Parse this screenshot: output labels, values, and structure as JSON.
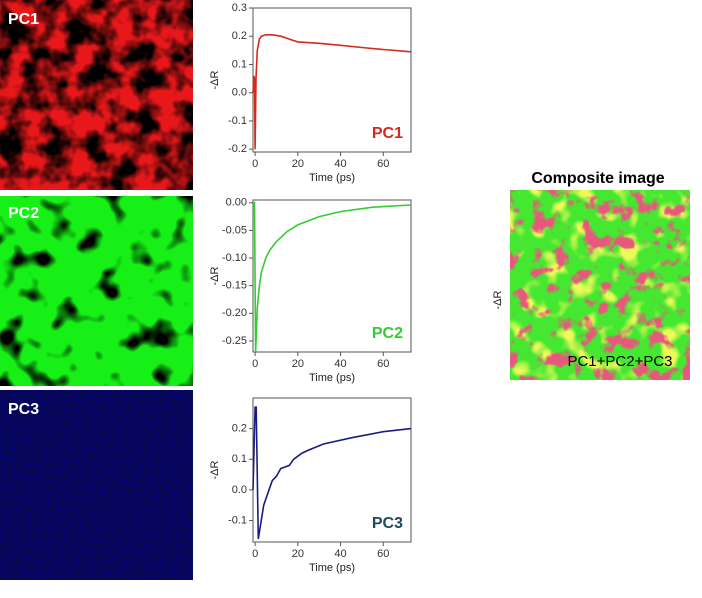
{
  "images": [
    {
      "label": "PC1"
    },
    {
      "label": "PC2"
    },
    {
      "label": "PC3"
    }
  ],
  "composite": {
    "title": "Composite image",
    "label": "PC1+PC2+PC3",
    "axis_label": "-ΔR"
  },
  "chart_data": [
    {
      "type": "line",
      "annotation": "PC1",
      "annotation_color": "#d42a1c",
      "xlabel": "Time (ps)",
      "ylabel": "-ΔR",
      "series": [
        {
          "name": "PC1",
          "color": "#d42a1c",
          "x": [
            -1,
            -0.6,
            -0.3,
            0,
            0.4,
            1,
            2,
            3,
            5,
            8,
            12,
            16,
            20,
            30,
            40,
            50,
            60,
            73
          ],
          "values": [
            0,
            0.06,
            0.05,
            -0.2,
            0.05,
            0.15,
            0.19,
            0.2,
            0.205,
            0.205,
            0.2,
            0.19,
            0.18,
            0.175,
            0.168,
            0.16,
            0.153,
            0.145
          ]
        }
      ],
      "xlim": [
        -1,
        73
      ],
      "ylim": [
        -0.21,
        0.3
      ],
      "xticks": [
        0,
        20,
        40,
        60
      ],
      "yticks": [
        0.3,
        0.2,
        0.1,
        {
          "value": 0,
          "label": "0.0"
        },
        -0.1,
        -0.2
      ]
    },
    {
      "type": "line",
      "annotation": "PC2",
      "annotation_color": "#33cc33",
      "xlabel": "Time (ps)",
      "ylabel": "-ΔR",
      "series": [
        {
          "name": "PC2",
          "color": "#33cc33",
          "x": [
            -1,
            -0.3,
            0.2,
            1,
            2,
            3,
            5,
            7,
            10,
            15,
            20,
            30,
            40,
            55,
            73
          ],
          "values": [
            0,
            0,
            -0.27,
            -0.19,
            -0.15,
            -0.125,
            -0.1,
            -0.085,
            -0.07,
            -0.052,
            -0.04,
            -0.025,
            -0.016,
            -0.008,
            -0.004
          ]
        }
      ],
      "xlim": [
        -1,
        73
      ],
      "ylim": [
        -0.27,
        0.005
      ],
      "xticks": [
        0,
        20,
        40,
        60
      ],
      "yticks": [
        {
          "value": 0,
          "label": "0.00"
        },
        -0.05,
        {
          "value": -0.1,
          "label": "-0.10"
        },
        -0.15,
        {
          "value": -0.2,
          "label": "-0.20"
        },
        -0.25
      ]
    },
    {
      "type": "line",
      "annotation": "PC3",
      "annotation_color": "#1f4a5c",
      "xlabel": "Time (ps)",
      "ylabel": "-ΔR",
      "series": [
        {
          "name": "PC3",
          "color": "#1c1c80",
          "x": [
            -1,
            0,
            0.5,
            1.5,
            4,
            8,
            10,
            12,
            16,
            18,
            20,
            22,
            25,
            32,
            45,
            60,
            73
          ],
          "values": [
            0,
            0.27,
            0.27,
            -0.16,
            -0.05,
            0.03,
            0.045,
            0.07,
            0.08,
            0.1,
            0.11,
            0.12,
            0.13,
            0.15,
            0.17,
            0.19,
            0.2
          ]
        }
      ],
      "xlim": [
        -1,
        73
      ],
      "ylim": [
        -0.17,
        0.3
      ],
      "xticks": [
        0,
        20,
        40,
        60
      ],
      "yticks": [
        0.2,
        0.1,
        {
          "value": 0,
          "label": "0.0"
        },
        -0.1
      ]
    }
  ]
}
